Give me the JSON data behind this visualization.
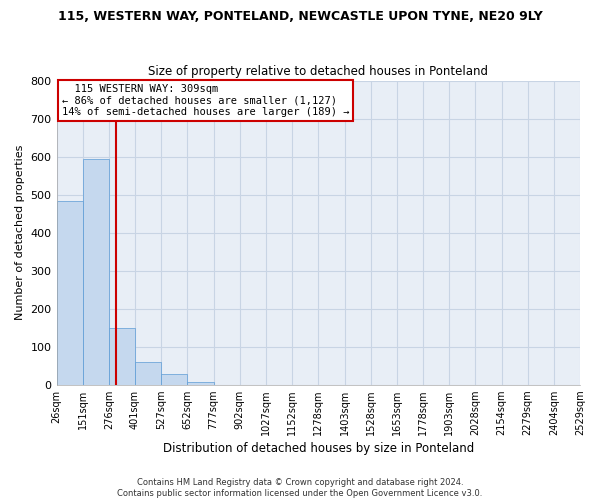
{
  "title": "115, WESTERN WAY, PONTELAND, NEWCASTLE UPON TYNE, NE20 9LY",
  "subtitle": "Size of property relative to detached houses in Ponteland",
  "xlabel": "Distribution of detached houses by size in Ponteland",
  "ylabel": "Number of detached properties",
  "property_size": 309,
  "annotation_title": "115 WESTERN WAY: 309sqm",
  "annotation_line1": "← 86% of detached houses are smaller (1,127)",
  "annotation_line2": "14% of semi-detached houses are larger (189) →",
  "bar_edges": [
    26,
    151,
    276,
    401,
    527,
    652,
    777,
    902,
    1027,
    1152,
    1278,
    1403,
    1528,
    1653,
    1778,
    1903,
    2028,
    2154,
    2279,
    2404,
    2529
  ],
  "bar_values": [
    484,
    594,
    148,
    60,
    27,
    8,
    0,
    0,
    0,
    0,
    0,
    0,
    0,
    0,
    0,
    0,
    0,
    0,
    0,
    0
  ],
  "bar_color": "#c5d8ee",
  "bar_edge_color": "#5b9bd5",
  "red_line_x": 309,
  "red_line_color": "#cc0000",
  "grid_color": "#c8d4e4",
  "bg_color": "#e8eef6",
  "annotation_box_color": "#ffffff",
  "annotation_box_edge": "#cc0000",
  "footer_line1": "Contains HM Land Registry data © Crown copyright and database right 2024.",
  "footer_line2": "Contains public sector information licensed under the Open Government Licence v3.0.",
  "ylim": [
    0,
    800
  ],
  "yticks": [
    0,
    100,
    200,
    300,
    400,
    500,
    600,
    700,
    800
  ]
}
